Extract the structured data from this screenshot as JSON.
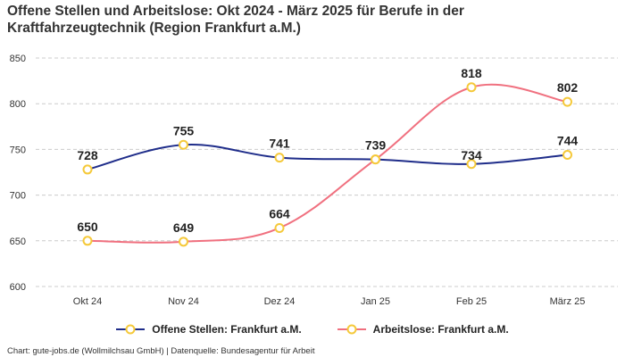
{
  "title": "Offene Stellen und Arbeitslose: Okt 2024 - März 2025 für Berufe in der Kraftfahrzeugtechnik (Region Frankfurt a.M.)",
  "source": "Chart: gute-jobs.de (Wollmilchsau GmbH) | Datenquelle: Bundesagentur für Arbeit",
  "colors": {
    "series1": "#1f2d8a",
    "series2": "#f0707f",
    "marker_stroke": "#f5c93a",
    "grid": "#cccccc"
  },
  "chart_data": {
    "type": "line",
    "title": "Offene Stellen und Arbeitslose: Okt 2024 - März 2025 für Berufe in der Kraftfahrzeugtechnik (Region Frankfurt a.M.)",
    "categories": [
      "Okt 24",
      "Nov 24",
      "Dez 24",
      "Jan 25",
      "Feb 25",
      "März 25"
    ],
    "ylim": [
      600,
      850
    ],
    "yticks": [
      600,
      650,
      700,
      750,
      800,
      850
    ],
    "grid": "horizontal-dashed",
    "legend_position": "bottom-center",
    "series": [
      {
        "name": "Offene Stellen: Frankfurt a.M.",
        "values": [
          728,
          755,
          741,
          739,
          734,
          744
        ],
        "label_positions": [
          "above",
          "above",
          "above",
          "above",
          "below",
          "above"
        ]
      },
      {
        "name": "Arbeitslose: Frankfurt a.M.",
        "values": [
          650,
          649,
          664,
          739,
          818,
          802
        ],
        "label_positions": [
          "above",
          "above",
          "above",
          "none",
          "above",
          "above"
        ]
      }
    ]
  }
}
